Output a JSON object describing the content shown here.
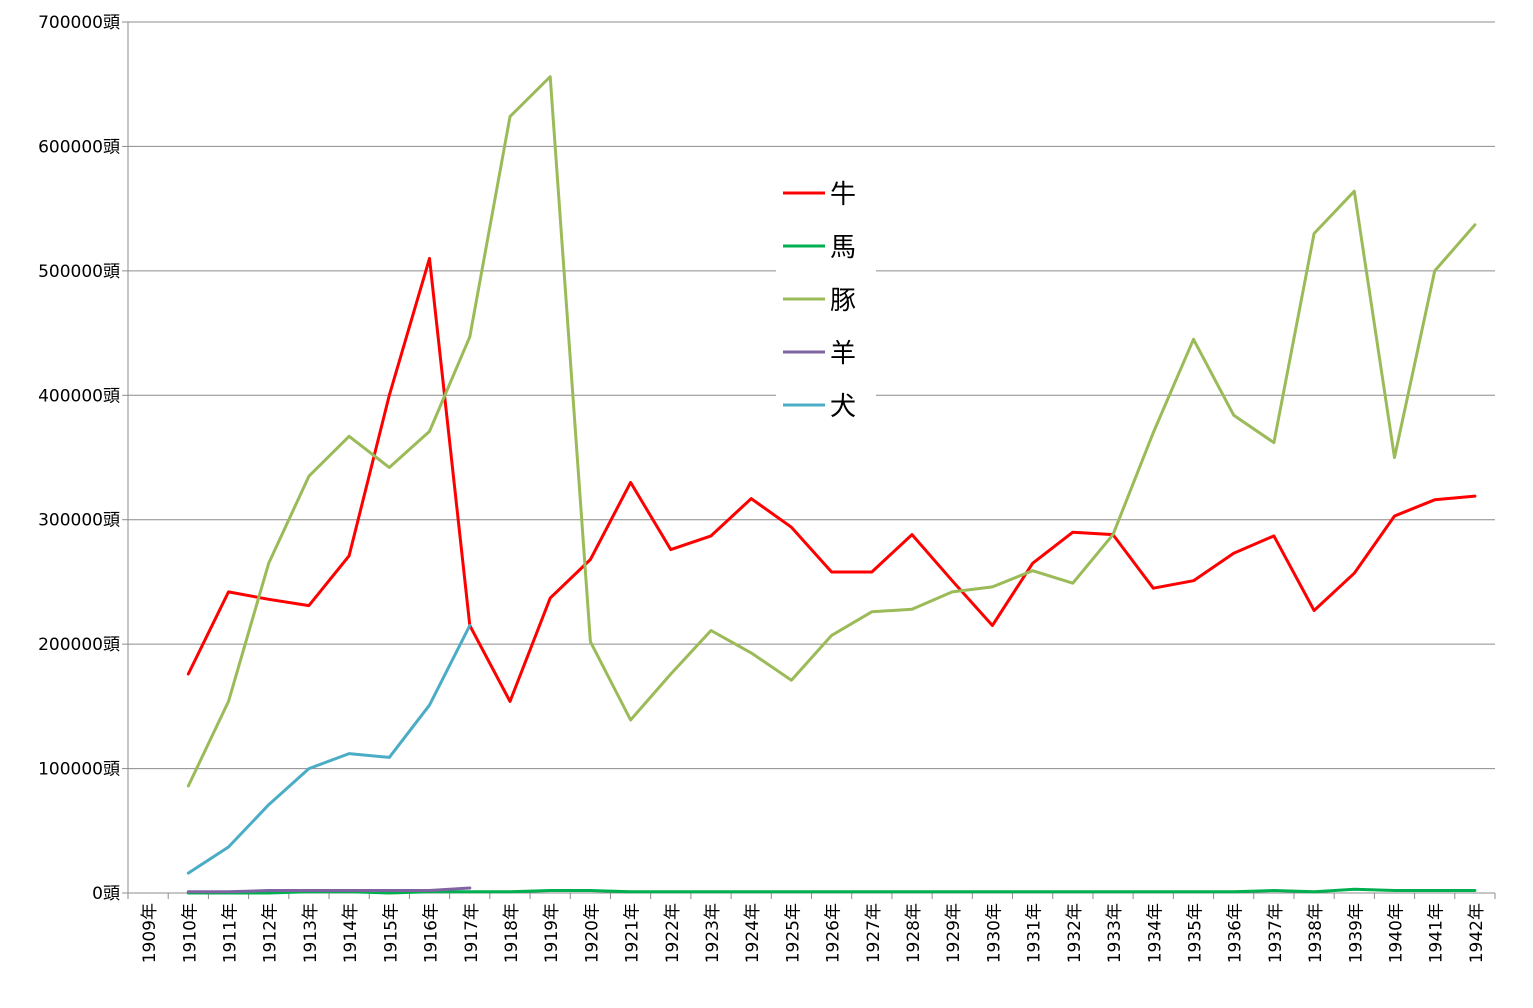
{
  "chart_data": {
    "type": "line",
    "title": "",
    "xlabel": "",
    "ylabel": "",
    "ylim": [
      0,
      700000
    ],
    "y_unit": "頭",
    "yticks": [
      0,
      100000,
      200000,
      300000,
      400000,
      500000,
      600000,
      700000
    ],
    "ytick_labels": [
      "0頭",
      "100000頭",
      "200000頭",
      "300000頭",
      "400000頭",
      "500000頭",
      "600000頭",
      "700000頭"
    ],
    "categories": [
      "1909年",
      "1910年",
      "1911年",
      "1912年",
      "1913年",
      "1914年",
      "1915年",
      "1916年",
      "1917年",
      "1918年",
      "1919年",
      "1920年",
      "1921年",
      "1922年",
      "1923年",
      "1924年",
      "1925年",
      "1926年",
      "1927年",
      "1928年",
      "1929年",
      "1930年",
      "1931年",
      "1932年",
      "1933年",
      "1934年",
      "1935年",
      "1936年",
      "1937年",
      "1938年",
      "1939年",
      "1940年",
      "1941年",
      "1942年"
    ],
    "grid": true,
    "legend_position": "upper-center",
    "series": [
      {
        "name": "牛",
        "color": "#ff0000",
        "values": [
          null,
          176000,
          242000,
          236000,
          231000,
          271000,
          400000,
          510000,
          215000,
          154000,
          237000,
          268000,
          330000,
          276000,
          287000,
          317000,
          294000,
          258000,
          258000,
          288000,
          251000,
          215000,
          265000,
          290000,
          288000,
          245000,
          251000,
          273000,
          287000,
          227000,
          257000,
          303000,
          316000,
          319000
        ]
      },
      {
        "name": "馬",
        "color": "#00b050",
        "values": [
          null,
          0,
          0,
          0,
          1000,
          1000,
          0,
          1000,
          1000,
          1000,
          2000,
          2000,
          1000,
          1000,
          1000,
          1000,
          1000,
          1000,
          1000,
          1000,
          1000,
          1000,
          1000,
          1000,
          1000,
          1000,
          1000,
          1000,
          2000,
          1000,
          3000,
          2000,
          2000,
          2000
        ]
      },
      {
        "name": "豚",
        "color": "#9bbb59",
        "values": [
          null,
          86000,
          154000,
          265000,
          335000,
          367000,
          342000,
          371000,
          447000,
          624000,
          656000,
          202000,
          139000,
          176000,
          211000,
          193000,
          171000,
          207000,
          226000,
          228000,
          242000,
          246000,
          259000,
          249000,
          288000,
          370000,
          445000,
          384000,
          362000,
          530000,
          564000,
          350000,
          500000,
          537000
        ]
      },
      {
        "name": "羊",
        "color": "#8064a2",
        "values": [
          null,
          1000,
          1000,
          2000,
          2000,
          2000,
          2000,
          2000,
          4000,
          null,
          null,
          null,
          null,
          null,
          null,
          null,
          null,
          null,
          null,
          null,
          null,
          null,
          null,
          null,
          null,
          null,
          null,
          null,
          null,
          null,
          null,
          null,
          null,
          null
        ]
      },
      {
        "name": "犬",
        "color": "#4bacc6",
        "values": [
          null,
          16000,
          37000,
          71000,
          100000,
          112000,
          109000,
          151000,
          215000,
          null,
          null,
          null,
          null,
          null,
          null,
          null,
          null,
          null,
          null,
          null,
          null,
          null,
          null,
          null,
          null,
          null,
          null,
          null,
          null,
          null,
          null,
          null,
          null,
          null
        ]
      }
    ]
  }
}
